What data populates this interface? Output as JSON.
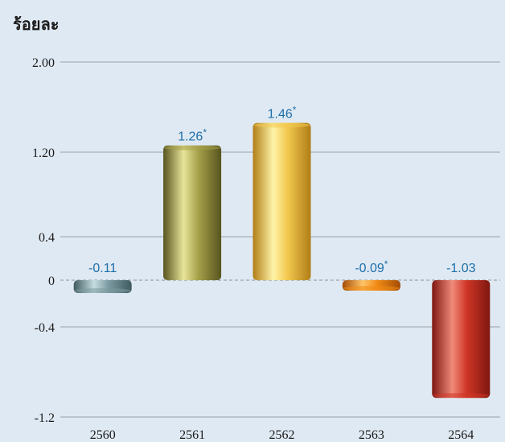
{
  "chart_data": {
    "type": "bar",
    "ylabel": "ร้อยละ",
    "categories": [
      "2560",
      "2561",
      "2562",
      "2563",
      "2564"
    ],
    "values": [
      -0.11,
      1.26,
      1.46,
      -0.09,
      -1.03
    ],
    "data_labels": [
      "-0.11",
      "1.26*",
      "1.46*",
      "-0.09*",
      "-1.03"
    ],
    "y_ticks": [
      {
        "value": 2.0,
        "label": "2.00"
      },
      {
        "value": 1.2,
        "label": "1.20"
      },
      {
        "value": 0.4,
        "label": "0.4"
      },
      {
        "value": 0.0,
        "label": "0"
      },
      {
        "value": -0.4,
        "label": "-0.4"
      },
      {
        "value": -1.2,
        "label": "-1.2"
      }
    ],
    "ylim": [
      -1.2,
      2.0
    ],
    "grid": true,
    "bar_colors": [
      {
        "light": "#c5dde0",
        "base": "#7b9aa1",
        "dark": "#3f5a60"
      },
      {
        "light": "#e8e59a",
        "base": "#a6a14a",
        "dark": "#57541f"
      },
      {
        "light": "#fff3a8",
        "base": "#f2c84e",
        "dark": "#b07d17"
      },
      {
        "light": "#ffc56a",
        "base": "#f08a14",
        "dark": "#a34d05"
      },
      {
        "light": "#f08a7a",
        "base": "#cf3526",
        "dark": "#7e1710"
      }
    ],
    "label_color": "#1f6fa8"
  }
}
